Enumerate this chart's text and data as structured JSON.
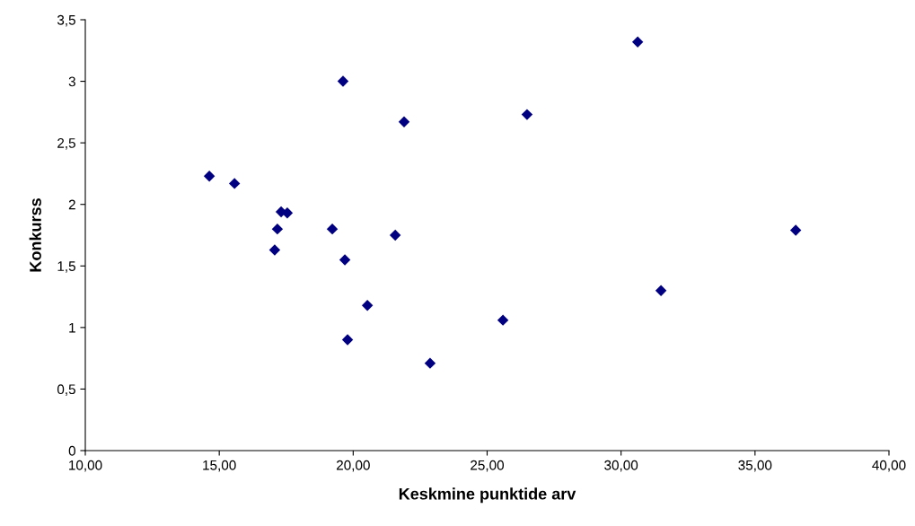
{
  "chart_data": {
    "type": "scatter",
    "xlabel": "Keskmine punktide arv",
    "ylabel": "Konkurss",
    "marker": "diamond",
    "grid": false,
    "legend": false,
    "x": [
      14.63,
      15.57,
      17.17,
      17.31,
      17.54,
      17.07,
      19.22,
      19.62,
      19.69,
      19.79,
      20.53,
      21.57,
      21.9,
      22.87,
      25.59,
      26.49,
      30.62,
      31.49,
      36.52
    ],
    "series": [
      {
        "color": "#000080",
        "values": [
          2.23,
          2.17,
          1.8,
          1.94,
          1.93,
          1.63,
          1.8,
          3.0,
          1.55,
          0.9,
          1.18,
          1.75,
          2.67,
          0.71,
          1.06,
          2.73,
          3.32,
          1.3,
          1.79
        ]
      }
    ],
    "xlim": [
      10,
      40
    ],
    "xticks": [
      {
        "value": 10,
        "label": "10,00"
      },
      {
        "value": 15,
        "label": "15,00"
      },
      {
        "value": 20,
        "label": "20,00"
      },
      {
        "value": 25,
        "label": "25,00"
      },
      {
        "value": 30,
        "label": "30,00"
      },
      {
        "value": 35,
        "label": "35,00"
      },
      {
        "value": 40,
        "label": "40,00"
      }
    ],
    "ylim": [
      0,
      3.5
    ],
    "yticks": [
      0,
      {
        "value": 0.5,
        "label": "0,5"
      },
      1,
      {
        "value": 1.5,
        "label": "1,5"
      },
      2,
      {
        "value": 2.5,
        "label": "2,5"
      },
      3,
      {
        "value": 3.5,
        "label": "3,5"
      }
    ]
  }
}
